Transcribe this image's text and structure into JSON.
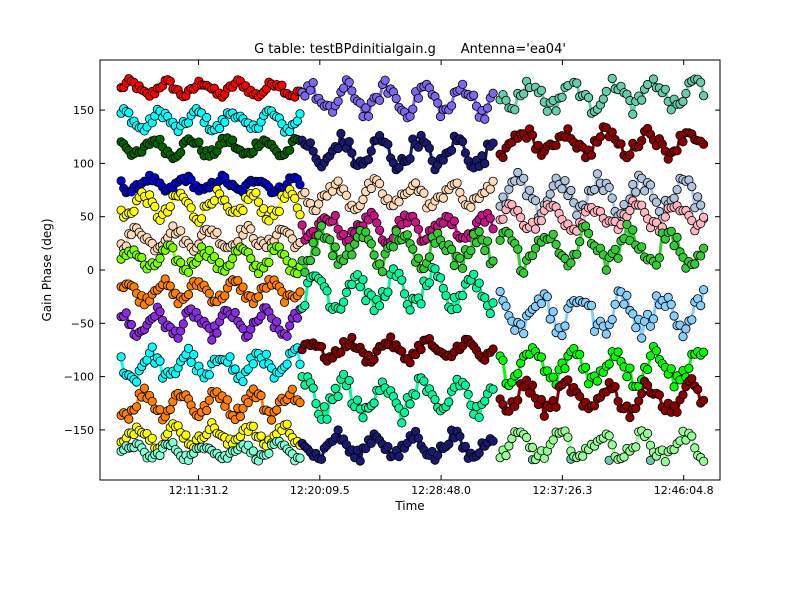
{
  "chart_data": {
    "type": "scatter",
    "title": "G table: testBPdinitialgain.g      Antenna='ea04'",
    "xlabel": "Time",
    "ylabel": "Gain Phase (deg)",
    "x_is_time": true,
    "xlim": [
      "12:04:30",
      "12:48:40"
    ],
    "ylim": [
      -197,
      197
    ],
    "xticks": [
      "12:11:31.2",
      "12:20:09.5",
      "12:28:48.0",
      "12:37:26.3",
      "12:46:04.8"
    ],
    "yticks": [
      -150,
      -100,
      -50,
      0,
      50,
      100,
      150
    ],
    "grid": false,
    "legend": "none",
    "scans": [
      {
        "start": "12:06:00",
        "end": "12:18:45"
      },
      {
        "start": "12:18:54",
        "end": "12:32:30"
      },
      {
        "start": "12:33:00",
        "end": "12:47:30"
      }
    ],
    "series": [
      {
        "color": "#ff0000",
        "scan": 0,
        "level": 170,
        "amp": 6
      },
      {
        "color": "#00ffff",
        "scan": 0,
        "level": 140,
        "amp": 8
      },
      {
        "color": "#006400",
        "scan": 0,
        "level": 115,
        "amp": 7
      },
      {
        "color": "#0000cd",
        "scan": 0,
        "level": 80,
        "amp": 6
      },
      {
        "color": "#ffff00",
        "scan": 0,
        "level": 60,
        "amp": 10
      },
      {
        "color": "#ffdab9",
        "scan": 0,
        "level": 30,
        "amp": 8
      },
      {
        "color": "#7fff00",
        "scan": 0,
        "level": 10,
        "amp": 9
      },
      {
        "color": "#ff7f00",
        "scan": 0,
        "level": -20,
        "amp": 8
      },
      {
        "color": "#8a2be2",
        "scan": 0,
        "level": -50,
        "amp": 10
      },
      {
        "color": "#00ffff",
        "scan": 0,
        "level": -90,
        "amp": 12
      },
      {
        "color": "#ff7f00",
        "scan": 0,
        "level": -125,
        "amp": 10
      },
      {
        "color": "#ffff00",
        "scan": 0,
        "level": -155,
        "amp": 8
      },
      {
        "color": "#7fffd4",
        "scan": 0,
        "level": -170,
        "amp": 6
      },
      {
        "color": "#7b68ee",
        "scan": 1,
        "level": 160,
        "amp": 12
      },
      {
        "color": "#191970",
        "scan": 1,
        "level": 110,
        "amp": 12
      },
      {
        "color": "#ffdab9",
        "scan": 1,
        "level": 70,
        "amp": 10
      },
      {
        "color": "#c71585",
        "scan": 1,
        "level": 40,
        "amp": 10
      },
      {
        "color": "#32cd32",
        "scan": 1,
        "level": 20,
        "amp": 14
      },
      {
        "color": "#00fa9a",
        "scan": 1,
        "level": -20,
        "amp": 14
      },
      {
        "color": "#800000",
        "scan": 1,
        "level": -75,
        "amp": 8
      },
      {
        "color": "#00fa9a",
        "scan": 1,
        "level": -120,
        "amp": 16
      },
      {
        "color": "#191970",
        "scan": 1,
        "level": -165,
        "amp": 10
      },
      {
        "color": "#66cdaa",
        "scan": 2,
        "level": 165,
        "amp": 12
      },
      {
        "color": "#8b0000",
        "scan": 2,
        "level": 120,
        "amp": 10
      },
      {
        "color": "#b0c4de",
        "scan": 2,
        "level": 70,
        "amp": 14
      },
      {
        "color": "#ffb6c1",
        "scan": 2,
        "level": 50,
        "amp": 10
      },
      {
        "color": "#32cd32",
        "scan": 2,
        "level": 20,
        "amp": 16
      },
      {
        "color": "#87cefa",
        "scan": 2,
        "level": -40,
        "amp": 16
      },
      {
        "color": "#00ff00",
        "scan": 2,
        "level": -90,
        "amp": 14
      },
      {
        "color": "#8b0000",
        "scan": 2,
        "level": -120,
        "amp": 12
      },
      {
        "color": "#98fb98",
        "scan": 2,
        "level": -165,
        "amp": 10
      }
    ]
  }
}
